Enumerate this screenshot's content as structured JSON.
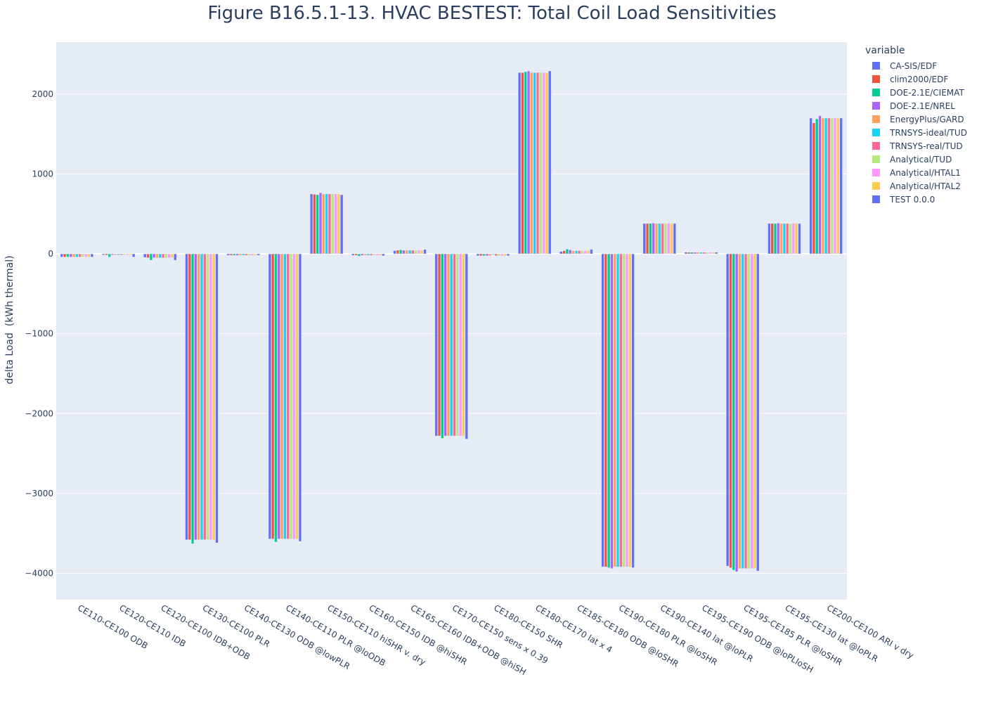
{
  "title": "Figure B16.5.1-13. HVAC BESTEST: Total Coil Load Sensitivities",
  "legend_title": "variable",
  "chart_data": {
    "type": "bar",
    "title": "Figure B16.5.1-13. HVAC BESTEST: Total Coil Load Sensitivities",
    "xlabel": "",
    "ylabel": "delta Load  (kWh thermal)",
    "ylim": [
      -4330,
      2650
    ],
    "yticks": [
      -4000,
      -3000,
      -2000,
      -1000,
      0,
      1000,
      2000
    ],
    "ytick_labels": [
      "−4000",
      "−3000",
      "−2000",
      "−1000",
      "0",
      "1000",
      "2000"
    ],
    "grid": true,
    "legend_position": "top-right",
    "categories": [
      "CE110-CE100 ODB",
      "CE120-CE110 IDB",
      "CE120-CE100 IDB+ODB",
      "CE130-CE100 PLR",
      "CE140-CE130 ODB @lowPLR",
      "CE140-CE110 PLR @loODB",
      "CE150-CE110 hiSHR v. dry",
      "CE160-CE150 IDB @hiSHR",
      "CE165-CE160 IDB+ODB @hiSH",
      "CE170-CE150 sens x 0.39",
      "CE180-CE150 SHR",
      "CE180-CE170 lat x 4",
      "CE185-CE180 ODB @loSHR",
      "CE190-CE180 PLR @loSHR",
      "CE190-CE140 lat @loPLR",
      "CE195-CE190 ODB @loPLloSH",
      "CE195-CE185 PLR @loSHR",
      "CE195-CE130 lat @loPLR",
      "CE200-CE100 ARI v dry"
    ],
    "series": [
      {
        "name": "CA-SIS/EDF",
        "color": "#636efa",
        "values": [
          -40,
          -15,
          -45,
          -3580,
          -20,
          -3570,
          750,
          -20,
          40,
          -2280,
          -25,
          2270,
          30,
          -3920,
          380,
          20,
          -3910,
          380,
          1700
        ]
      },
      {
        "name": "clim2000/EDF",
        "color": "#ef553b",
        "values": [
          -40,
          -15,
          -50,
          -3580,
          -20,
          -3570,
          745,
          -20,
          45,
          -2280,
          -25,
          2270,
          40,
          -3920,
          380,
          20,
          -3930,
          380,
          1640
        ]
      },
      {
        "name": "DOE-2.1E/CIEMAT",
        "color": "#00cc96",
        "values": [
          -40,
          -40,
          -80,
          -3630,
          -20,
          -3610,
          740,
          -30,
          50,
          -2310,
          -25,
          2280,
          60,
          -3930,
          380,
          20,
          -3960,
          380,
          1690
        ]
      },
      {
        "name": "DOE-2.1E/NREL",
        "color": "#ab63fa",
        "values": [
          -40,
          -15,
          -50,
          -3580,
          -20,
          -3570,
          765,
          -20,
          45,
          -2280,
          -25,
          2290,
          50,
          -3940,
          385,
          20,
          -3980,
          385,
          1730
        ]
      },
      {
        "name": "EnergyPlus/GARD",
        "color": "#ffa15a",
        "values": [
          -40,
          -15,
          -50,
          -3580,
          -20,
          -3570,
          750,
          -20,
          45,
          -2280,
          -25,
          2270,
          40,
          -3920,
          380,
          20,
          -3940,
          380,
          1700
        ]
      },
      {
        "name": "TRNSYS-ideal/TUD",
        "color": "#19d3f3",
        "values": [
          -40,
          -15,
          -50,
          -3580,
          -20,
          -3570,
          750,
          -20,
          45,
          -2280,
          -10,
          2270,
          40,
          -3920,
          380,
          20,
          -3940,
          380,
          1700
        ]
      },
      {
        "name": "TRNSYS-real/TUD",
        "color": "#ff6692",
        "values": [
          -40,
          -15,
          -50,
          -3580,
          -20,
          -3570,
          750,
          -20,
          45,
          -2280,
          -25,
          2270,
          40,
          -3920,
          380,
          20,
          -3940,
          380,
          1700
        ]
      },
      {
        "name": "Analytical/TUD",
        "color": "#b6e880",
        "values": [
          -40,
          -15,
          -50,
          -3580,
          -20,
          -3570,
          750,
          -20,
          45,
          -2280,
          -25,
          2270,
          40,
          -3920,
          380,
          20,
          -3940,
          380,
          1700
        ]
      },
      {
        "name": "Analytical/HTAL1",
        "color": "#ff97ff",
        "values": [
          -40,
          -15,
          -50,
          -3580,
          -20,
          -3570,
          750,
          -20,
          45,
          -2280,
          -25,
          2270,
          40,
          -3920,
          380,
          20,
          -3940,
          380,
          1700
        ]
      },
      {
        "name": "Analytical/HTAL2",
        "color": "#fecb52",
        "values": [
          -40,
          -15,
          -50,
          -3580,
          -20,
          -3570,
          750,
          -20,
          45,
          -2280,
          -25,
          2270,
          40,
          -3920,
          380,
          20,
          -3940,
          380,
          1700
        ]
      },
      {
        "name": "TEST 0.0.0",
        "color": "#636efa",
        "values": [
          -40,
          -40,
          -80,
          -3620,
          -20,
          -3600,
          740,
          -25,
          55,
          -2320,
          -25,
          2290,
          55,
          -3930,
          380,
          20,
          -3970,
          380,
          1700
        ]
      }
    ]
  }
}
